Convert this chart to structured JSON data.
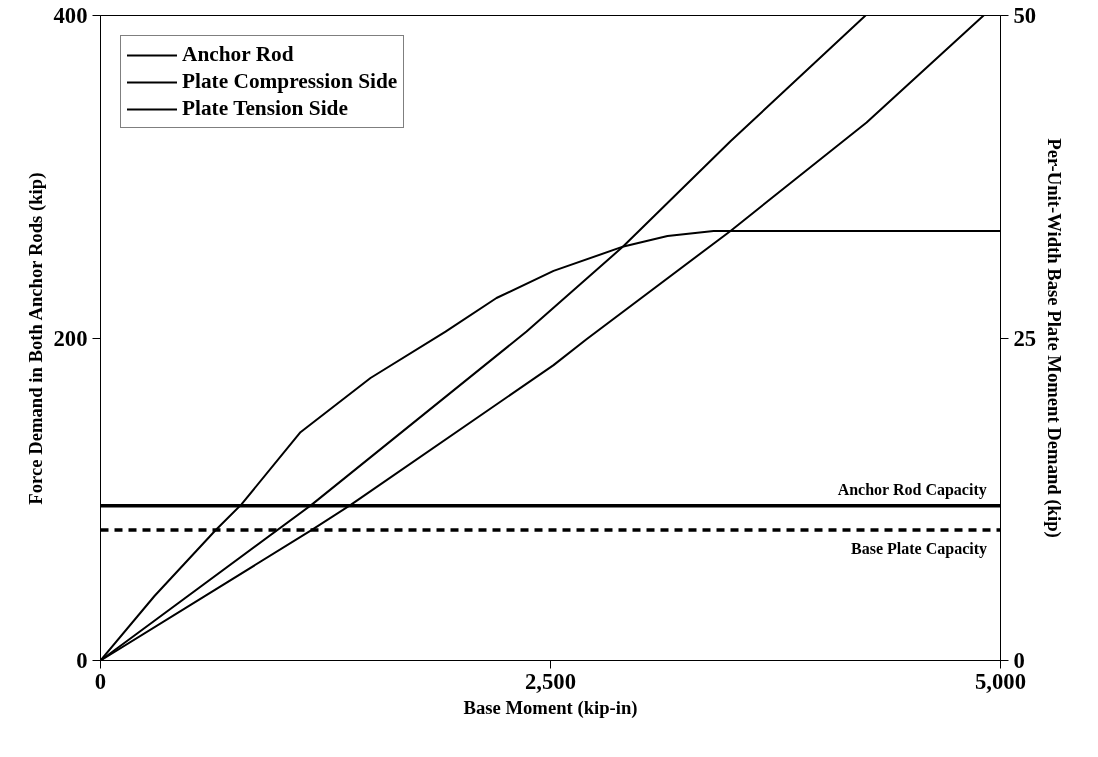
{
  "chart_data": {
    "type": "line",
    "xlabel": "Base Moment (kip-in)",
    "ylabel": "Force Demand in Both Anchor Rods (kip)",
    "y2label": "Per-Unit-Width Base Plate Moment Demand (kip)",
    "series": [
      {
        "name": "Anchor Rod",
        "color": "#000000",
        "x": [
          0,
          1172,
          2367,
          2906,
          3500,
          4250
        ],
        "values": [
          0,
          96.5,
          204,
          257,
          322,
          400
        ]
      },
      {
        "name": "Plate Compression Side",
        "color": "#000000",
        "axis": "y2",
        "x": [
          0,
          300,
          639,
          783,
          1111,
          1500,
          1917,
          2200,
          2517,
          2906,
          3150,
          3406,
          5000
        ],
        "values": [
          0,
          5.0,
          10.1,
          12.1,
          17.7,
          21.9,
          25.5,
          28.1,
          30.2,
          32.1,
          32.9,
          33.3,
          33.3
        ]
      },
      {
        "name": "Plate Tension Side",
        "color": "#000000",
        "axis": "y2",
        "x": [
          0,
          1172,
          1394,
          2517,
          2700,
          3500,
          4256,
          4906
        ],
        "values": [
          0,
          10.1,
          12.1,
          22.9,
          24.9,
          33.3,
          41.7,
          50
        ]
      }
    ],
    "xlim": [
      0,
      5000
    ],
    "xticks": [
      0,
      {
        "value": 2500,
        "label": "2,500"
      },
      {
        "value": 5000,
        "label": "5,000"
      }
    ],
    "ylim": [
      0,
      400
    ],
    "yticks": [
      0,
      200,
      400
    ],
    "y2lim": [
      0,
      50
    ],
    "y2ticks": [
      0,
      25,
      50
    ],
    "ref_lines": [
      {
        "axis": "y",
        "value": 96,
        "label": "Anchor Rod Capacity",
        "color": "#000000",
        "line_style": "solid"
      },
      {
        "axis": "y",
        "value": 81,
        "label": "Base Plate Capacity",
        "color": "#000000",
        "line_style": "dashed"
      }
    ],
    "grid": false,
    "legend": "top left",
    "marker": "none",
    "line_style": "solid"
  }
}
